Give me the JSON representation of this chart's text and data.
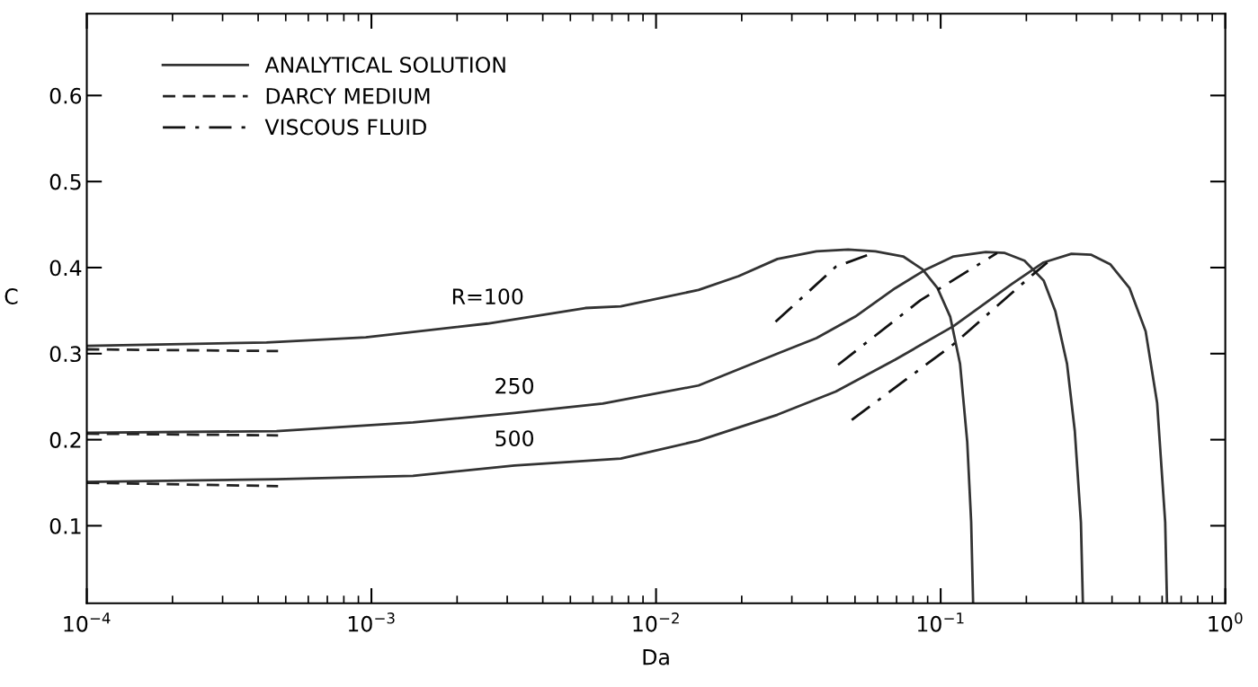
{
  "chart_data": {
    "type": "line",
    "xlabel": "Da",
    "ylabel": "C",
    "log": "x",
    "grid": false,
    "legend": "top left",
    "marker": "none",
    "xlim": [
      0.0001,
      1
    ],
    "xticks": [
      {
        "value": 0.0001,
        "label": "10$^{−4}$"
      },
      {
        "value": 0.001,
        "label": "10$^{−3}$"
      },
      {
        "value": 0.01,
        "label": "10$^{−2}$"
      },
      {
        "value": 0.1,
        "label": "10$^{−1}$"
      },
      {
        "value": 1,
        "label": "10$^{0}$"
      }
    ],
    "ylim": [
      0.01,
      0.695
    ],
    "yticks": [
      {
        "value": 0.1,
        "label": "0.1"
      },
      {
        "value": 0.2,
        "label": "0.2"
      },
      {
        "value": 0.3,
        "label": "0.3"
      },
      {
        "value": 0.4,
        "label": "0.4"
      },
      {
        "value": 0.5,
        "label": "0.5"
      },
      {
        "value": 0.6,
        "label": "0.6"
      }
    ],
    "series": [
      {
        "name": "ANALYTICAL SOLUTION",
        "color": "#333333",
        "line_style": "solid",
        "x": [
          0.0001,
          0.000428,
          0.000955,
          0.00256,
          0.00564,
          0.00752,
          0.0141,
          0.0195,
          0.0267,
          0.0366,
          0.0473,
          0.059,
          0.0738,
          0.0863,
          0.0975,
          0.108,
          0.117,
          0.124,
          0.128,
          0.13
        ],
        "values": [
          0.309,
          0.313,
          0.319,
          0.335,
          0.353,
          0.355,
          0.374,
          0.39,
          0.41,
          0.419,
          0.421,
          0.419,
          0.413,
          0.398,
          0.376,
          0.343,
          0.288,
          0.197,
          0.104,
          0.01
        ]
      },
      {
        "color": "#333333",
        "line_style": "solid",
        "x": [
          0.0001,
          0.000464,
          0.0014,
          0.00318,
          0.0065,
          0.0141,
          0.0267,
          0.0366,
          0.0501,
          0.0692,
          0.0889,
          0.111,
          0.144,
          0.168,
          0.197,
          0.23,
          0.253,
          0.278,
          0.296,
          0.311,
          0.316
        ],
        "values": [
          0.208,
          0.21,
          0.22,
          0.231,
          0.242,
          0.263,
          0.3,
          0.318,
          0.343,
          0.376,
          0.398,
          0.413,
          0.418,
          0.417,
          0.408,
          0.385,
          0.349,
          0.288,
          0.21,
          0.104,
          0.01
        ]
      },
      {
        "color": "#333333",
        "line_style": "solid",
        "x": [
          0.0001,
          0.000464,
          0.0014,
          0.00318,
          0.00752,
          0.0141,
          0.0267,
          0.0428,
          0.0692,
          0.111,
          0.178,
          0.23,
          0.288,
          0.337,
          0.394,
          0.461,
          0.525,
          0.576,
          0.615,
          0.624
        ],
        "values": [
          0.151,
          0.154,
          0.158,
          0.17,
          0.178,
          0.199,
          0.229,
          0.256,
          0.293,
          0.332,
          0.381,
          0.406,
          0.416,
          0.415,
          0.404,
          0.376,
          0.326,
          0.243,
          0.104,
          0.01
        ]
      },
      {
        "name": "DARCY MEDIUM",
        "color": "#222222",
        "line_style": "dashed",
        "x": [
          0.0001,
          0.00047
        ],
        "values": [
          0.305,
          0.303
        ]
      },
      {
        "color": "#222222",
        "line_style": "dashed",
        "x": [
          0.0001,
          0.00047
        ],
        "values": [
          0.207,
          0.205
        ]
      },
      {
        "color": "#222222",
        "line_style": "dashed",
        "x": [
          0.0001,
          0.00047
        ],
        "values": [
          0.15,
          0.146
        ]
      },
      {
        "name": "VISCOUS FLUID",
        "color": "#111111",
        "line_style": "dashdot",
        "x": [
          0.0263,
          0.0428,
          0.059
        ],
        "values": [
          0.337,
          0.401,
          0.418
        ]
      },
      {
        "color": "#111111",
        "line_style": "dashdot",
        "x": [
          0.0436,
          0.0849,
          0.158
        ],
        "values": [
          0.287,
          0.362,
          0.417
        ]
      },
      {
        "color": "#111111",
        "line_style": "dashdot",
        "x": [
          0.0487,
          0.111,
          0.211,
          0.237
        ],
        "values": [
          0.223,
          0.311,
          0.392,
          0.406
        ]
      }
    ],
    "annotations": [
      "R=100",
      "250",
      "500"
    ]
  }
}
